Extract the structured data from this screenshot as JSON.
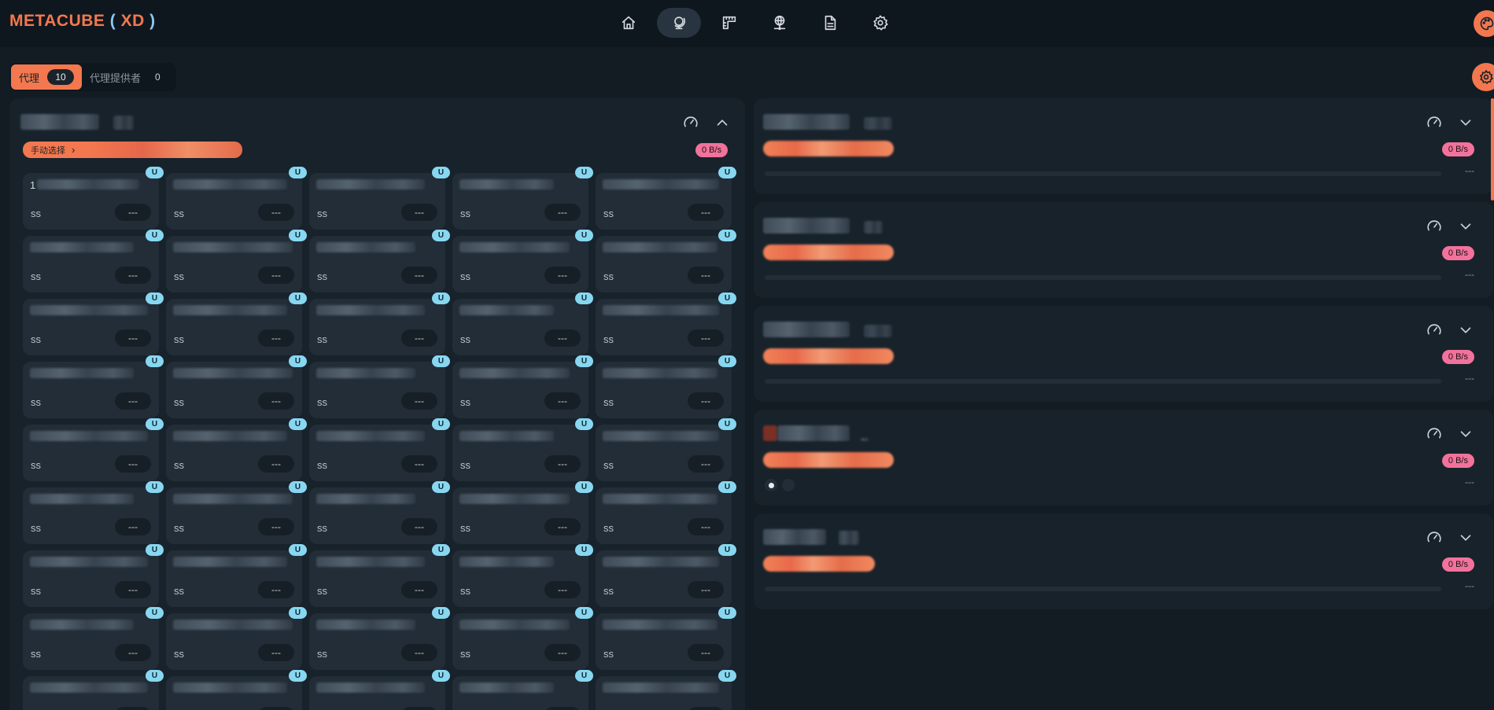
{
  "brand": {
    "main": "METACUBE",
    "paren_open": " ( ",
    "suffix": "XD",
    "paren_close": " )"
  },
  "nav": {
    "items": [
      {
        "name": "home",
        "icon": "home-icon"
      },
      {
        "name": "proxies",
        "icon": "globe-stand-icon",
        "active": true
      },
      {
        "name": "rules",
        "icon": "ruler-icon"
      },
      {
        "name": "connections",
        "icon": "network-globe-icon"
      },
      {
        "name": "logs",
        "icon": "document-icon"
      },
      {
        "name": "settings",
        "icon": "gear-icon"
      }
    ]
  },
  "tabs": [
    {
      "label": "代理",
      "count": "10",
      "active": true
    },
    {
      "label": "代理提供者",
      "count": "0",
      "active": false
    }
  ],
  "left_group": {
    "selector_label": "手动选择",
    "speed": "0 B/s",
    "card_type": "ss",
    "card_delay": "---",
    "udp_badge": "U",
    "first_card_prefix": "1"
  },
  "right_groups": [
    {
      "speed": "0 B/s",
      "delay": "---"
    },
    {
      "speed": "0 B/s",
      "delay": "---"
    },
    {
      "speed": "0 B/s",
      "delay": "---"
    },
    {
      "speed": "0 B/s",
      "delay": "---",
      "dots": true
    },
    {
      "speed": "0 B/s",
      "delay": "---"
    }
  ],
  "colors": {
    "accent": "#f3784f",
    "speed_badge": "#f2729b",
    "udp_badge": "#88d7f0",
    "background": "#131b23",
    "panel": "#18222b",
    "card": "#222d37"
  }
}
